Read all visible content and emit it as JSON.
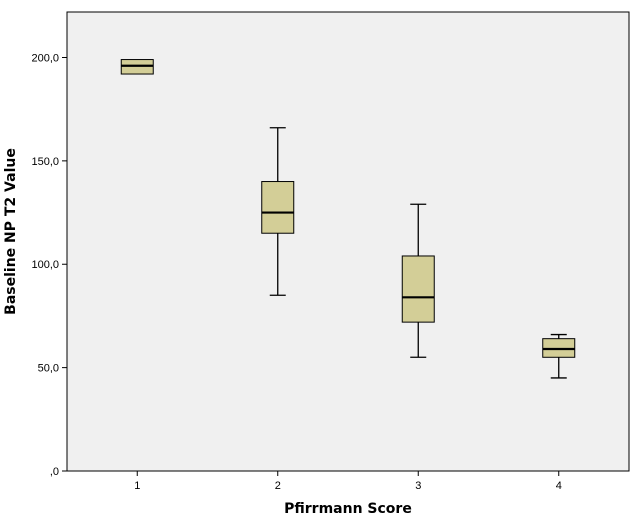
{
  "chart_data": {
    "type": "boxplot",
    "xlabel": "Pfirrmann Score",
    "ylabel": "Baseline NP T2 Value",
    "categories": [
      "1",
      "2",
      "3",
      "4"
    ],
    "boxes": [
      {
        "category": "1",
        "min": 192,
        "q1": 192,
        "median": 196,
        "q3": 199,
        "max": 199
      },
      {
        "category": "2",
        "min": 85,
        "q1": 115,
        "median": 125,
        "q3": 140,
        "max": 166
      },
      {
        "category": "3",
        "min": 55,
        "q1": 72,
        "median": 84,
        "q3": 104,
        "max": 129
      },
      {
        "category": "4",
        "min": 45,
        "q1": 55,
        "median": 59,
        "q3": 64,
        "max": 66
      }
    ],
    "ylim": [
      0,
      222
    ],
    "yticks": [
      0,
      50,
      100,
      150,
      200
    ],
    "ytick_labels": [
      ",0",
      "50,0",
      "100,0",
      "150,0",
      "200,0"
    ],
    "grid": false,
    "colors": {
      "plot_background": "#f0f0f0",
      "box_fill": "#d3ce97",
      "stroke": "#000000"
    }
  }
}
